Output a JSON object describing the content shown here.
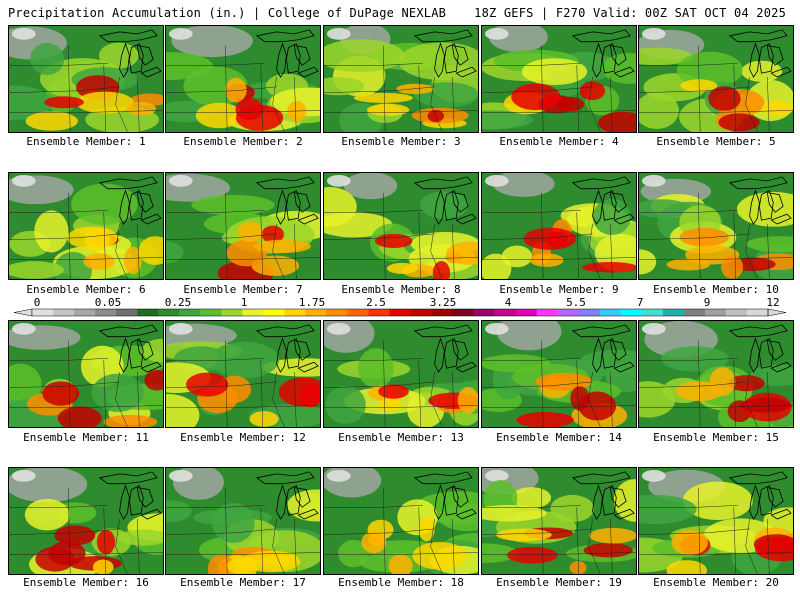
{
  "header": {
    "title": "Precipitation Accumulation (in.) | College of DuPage NEXLAB",
    "run_info": "18Z GEFS | F270 Valid: 00Z SAT OCT 04 2025"
  },
  "legend": {
    "tick_labels": [
      "0",
      "0.05",
      "0.25",
      "1",
      "1.75",
      "2.5",
      "3.25",
      "4",
      "5.5",
      "7",
      "9",
      "12"
    ],
    "colors": [
      "#e0e0e0",
      "#c4c4c4",
      "#a8a8a8",
      "#8c8c8c",
      "#707070",
      "#1e6e1e",
      "#2e8b2e",
      "#3fa63f",
      "#5cbf2a",
      "#9bd62a",
      "#e8f22a",
      "#ffff00",
      "#ffd700",
      "#ffb000",
      "#ff8c00",
      "#ff6600",
      "#ff3300",
      "#e80000",
      "#c40000",
      "#a00000",
      "#800020",
      "#a0006a",
      "#c8008c",
      "#e600b4",
      "#ff33ff",
      "#b266ff",
      "#8080ff",
      "#33ccff",
      "#00ffff",
      "#40e0d0",
      "#20b2aa",
      "#808080",
      "#a0a0a0",
      "#c0c0c0",
      "#d8d8d8"
    ]
  },
  "members": [
    {
      "label": "Ensemble Member: 1"
    },
    {
      "label": "Ensemble Member: 2"
    },
    {
      "label": "Ensemble Member: 3"
    },
    {
      "label": "Ensemble Member: 4"
    },
    {
      "label": "Ensemble Member: 5"
    },
    {
      "label": "Ensemble Member: 6"
    },
    {
      "label": "Ensemble Member: 7"
    },
    {
      "label": "Ensemble Member: 8"
    },
    {
      "label": "Ensemble Member: 9"
    },
    {
      "label": "Ensemble Member: 10"
    },
    {
      "label": "Ensemble Member: 11"
    },
    {
      "label": "Ensemble Member: 12"
    },
    {
      "label": "Ensemble Member: 13"
    },
    {
      "label": "Ensemble Member: 14"
    },
    {
      "label": "Ensemble Member: 15"
    },
    {
      "label": "Ensemble Member: 16"
    },
    {
      "label": "Ensemble Member: 17"
    },
    {
      "label": "Ensemble Member: 18"
    },
    {
      "label": "Ensemble Member: 19"
    },
    {
      "label": "Ensemble Member: 20"
    }
  ]
}
